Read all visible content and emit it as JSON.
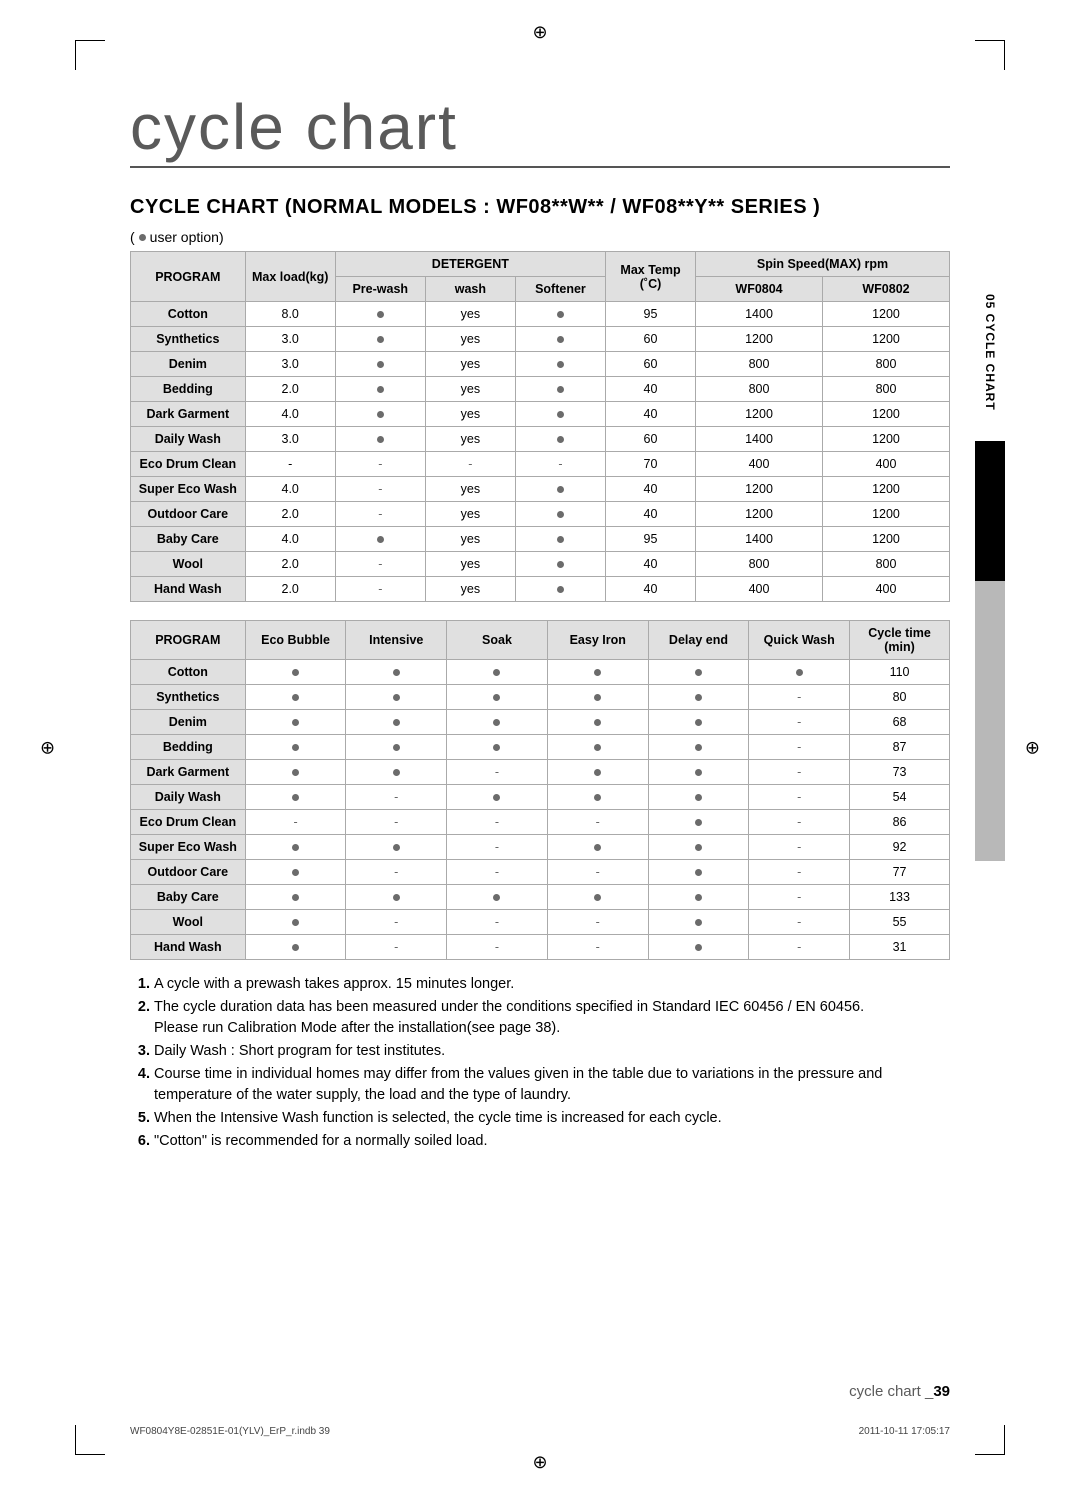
{
  "pageTitle": "cycle chart",
  "sectionTitle": "CYCLE CHART (NORMAL MODELS : WF08**W** / WF08**Y** SERIES )",
  "legend": " user option)",
  "sideTab": "05 CYCLE CHART",
  "table1": {
    "headers": {
      "program": "PROGRAM",
      "maxLoad": "Max load(kg)",
      "detergent": "DETERGENT",
      "prewash": "Pre-wash",
      "wash": "wash",
      "softener": "Softener",
      "maxTemp": "Max Temp\n(˚C)",
      "spin": "Spin Speed(MAX) rpm",
      "m1": "WF0804",
      "m2": "WF0802"
    },
    "rows": [
      {
        "program": "Cotton",
        "maxLoad": "8.0",
        "prewash": "dot",
        "wash": "yes",
        "softener": "dot",
        "temp": "95",
        "m1": "1400",
        "m2": "1200"
      },
      {
        "program": "Synthetics",
        "maxLoad": "3.0",
        "prewash": "dot",
        "wash": "yes",
        "softener": "dot",
        "temp": "60",
        "m1": "1200",
        "m2": "1200"
      },
      {
        "program": "Denim",
        "maxLoad": "3.0",
        "prewash": "dot",
        "wash": "yes",
        "softener": "dot",
        "temp": "60",
        "m1": "800",
        "m2": "800"
      },
      {
        "program": "Bedding",
        "maxLoad": "2.0",
        "prewash": "dot",
        "wash": "yes",
        "softener": "dot",
        "temp": "40",
        "m1": "800",
        "m2": "800"
      },
      {
        "program": "Dark Garment",
        "maxLoad": "4.0",
        "prewash": "dot",
        "wash": "yes",
        "softener": "dot",
        "temp": "40",
        "m1": "1200",
        "m2": "1200"
      },
      {
        "program": "Daily Wash",
        "maxLoad": "3.0",
        "prewash": "dot",
        "wash": "yes",
        "softener": "dot",
        "temp": "60",
        "m1": "1400",
        "m2": "1200"
      },
      {
        "program": "Eco Drum Clean",
        "maxLoad": "-",
        "prewash": "-",
        "wash": "-",
        "softener": "-",
        "temp": "70",
        "m1": "400",
        "m2": "400"
      },
      {
        "program": "Super Eco Wash",
        "maxLoad": "4.0",
        "prewash": "-",
        "wash": "yes",
        "softener": "dot",
        "temp": "40",
        "m1": "1200",
        "m2": "1200"
      },
      {
        "program": "Outdoor Care",
        "maxLoad": "2.0",
        "prewash": "-",
        "wash": "yes",
        "softener": "dot",
        "temp": "40",
        "m1": "1200",
        "m2": "1200"
      },
      {
        "program": "Baby Care",
        "maxLoad": "4.0",
        "prewash": "dot",
        "wash": "yes",
        "softener": "dot",
        "temp": "95",
        "m1": "1400",
        "m2": "1200"
      },
      {
        "program": "Wool",
        "maxLoad": "2.0",
        "prewash": "-",
        "wash": "yes",
        "softener": "dot",
        "temp": "40",
        "m1": "800",
        "m2": "800"
      },
      {
        "program": "Hand Wash",
        "maxLoad": "2.0",
        "prewash": "-",
        "wash": "yes",
        "softener": "dot",
        "temp": "40",
        "m1": "400",
        "m2": "400"
      }
    ]
  },
  "table2": {
    "headers": {
      "program": "PROGRAM",
      "eco": "Eco Bubble",
      "intensive": "Intensive",
      "soak": "Soak",
      "easy": "Easy Iron",
      "delay": "Delay end",
      "quick": "Quick Wash",
      "cycle": "Cycle time\n(min)"
    },
    "rows": [
      {
        "program": "Cotton",
        "eco": "dot",
        "intensive": "dot",
        "soak": "dot",
        "easy": "dot",
        "delay": "dot",
        "quick": "dot",
        "cycle": "110"
      },
      {
        "program": "Synthetics",
        "eco": "dot",
        "intensive": "dot",
        "soak": "dot",
        "easy": "dot",
        "delay": "dot",
        "quick": "-",
        "cycle": "80"
      },
      {
        "program": "Denim",
        "eco": "dot",
        "intensive": "dot",
        "soak": "dot",
        "easy": "dot",
        "delay": "dot",
        "quick": "-",
        "cycle": "68"
      },
      {
        "program": "Bedding",
        "eco": "dot",
        "intensive": "dot",
        "soak": "dot",
        "easy": "dot",
        "delay": "dot",
        "quick": "-",
        "cycle": "87"
      },
      {
        "program": "Dark Garment",
        "eco": "dot",
        "intensive": "dot",
        "soak": "-",
        "easy": "dot",
        "delay": "dot",
        "quick": "-",
        "cycle": "73"
      },
      {
        "program": "Daily Wash",
        "eco": "dot",
        "intensive": "-",
        "soak": "dot",
        "easy": "dot",
        "delay": "dot",
        "quick": "-",
        "cycle": "54"
      },
      {
        "program": "Eco Drum Clean",
        "eco": "-",
        "intensive": "-",
        "soak": "-",
        "easy": "-",
        "delay": "dot",
        "quick": "-",
        "cycle": "86"
      },
      {
        "program": "Super Eco Wash",
        "eco": "dot",
        "intensive": "dot",
        "soak": "-",
        "easy": "dot",
        "delay": "dot",
        "quick": "-",
        "cycle": "92"
      },
      {
        "program": "Outdoor Care",
        "eco": "dot",
        "intensive": "-",
        "soak": "-",
        "easy": "-",
        "delay": "dot",
        "quick": "-",
        "cycle": "77"
      },
      {
        "program": "Baby Care",
        "eco": "dot",
        "intensive": "dot",
        "soak": "dot",
        "easy": "dot",
        "delay": "dot",
        "quick": "-",
        "cycle": "133"
      },
      {
        "program": "Wool",
        "eco": "dot",
        "intensive": "-",
        "soak": "-",
        "easy": "-",
        "delay": "dot",
        "quick": "-",
        "cycle": "55"
      },
      {
        "program": "Hand Wash",
        "eco": "dot",
        "intensive": "-",
        "soak": "-",
        "easy": "-",
        "delay": "dot",
        "quick": "-",
        "cycle": "31"
      }
    ]
  },
  "notes": [
    "A cycle with a prewash takes approx. 15 minutes longer.",
    "The cycle duration data has been measured under the conditions specified in Standard IEC 60456 / EN 60456.\nPlease run Calibration Mode after the installation(see page 38).",
    "Daily Wash : Short program for test institutes.",
    "Course time in individual homes may differ from the values given in the table due to variations in the pressure and temperature of the water supply, the load and the type of laundry.",
    "When the Intensive Wash function is selected, the cycle time is increased for each cycle.",
    "\"Cotton\" is recommended for a normally soiled load."
  ],
  "pageFooter": {
    "label": "cycle chart _",
    "num": "39"
  },
  "printFooter": {
    "left": "WF0804Y8E-02851E-01(YLV)_ErP_r.indb   39",
    "right": "2011-10-11   17:05:17"
  }
}
